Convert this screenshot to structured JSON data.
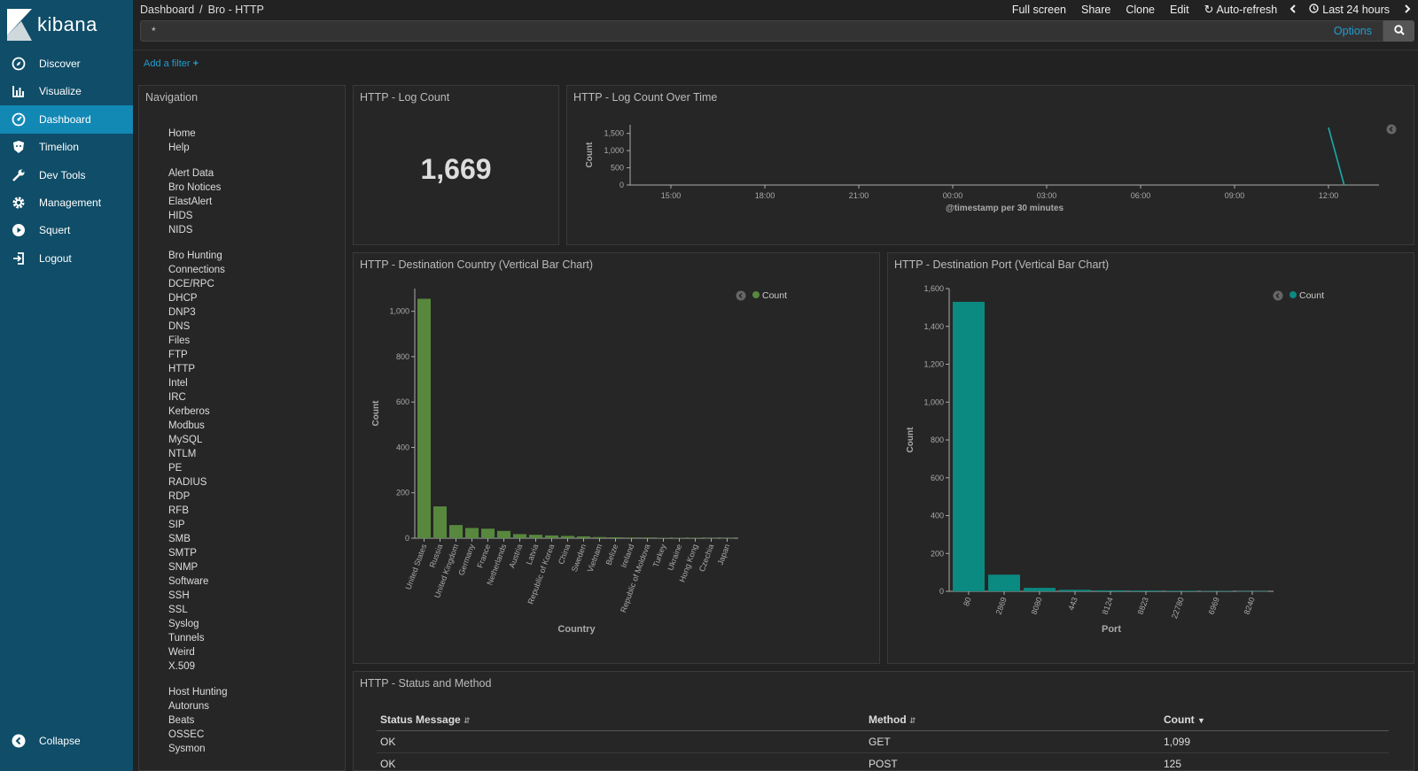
{
  "app": {
    "brand": "kibana"
  },
  "sidebar": {
    "items": [
      {
        "label": "Discover",
        "icon": "compass-icon"
      },
      {
        "label": "Visualize",
        "icon": "bar-chart-icon"
      },
      {
        "label": "Dashboard",
        "icon": "dashboard-icon"
      },
      {
        "label": "Timelion",
        "icon": "timelion-icon"
      },
      {
        "label": "Dev Tools",
        "icon": "wrench-icon"
      },
      {
        "label": "Management",
        "icon": "gear-icon"
      },
      {
        "label": "Squert",
        "icon": "play-circle-icon"
      },
      {
        "label": "Logout",
        "icon": "logout-icon"
      }
    ],
    "active": "Dashboard",
    "collapse_label": "Collapse"
  },
  "breadcrumb": {
    "root": "Dashboard",
    "sep": "/",
    "current": "Bro - HTTP"
  },
  "topmenu": {
    "fullscreen": "Full screen",
    "share": "Share",
    "clone": "Clone",
    "edit": "Edit",
    "autorefresh": "Auto-refresh",
    "timerange": "Last 24 hours"
  },
  "query": {
    "value": "*",
    "options": "Options"
  },
  "filters": {
    "add": "Add a filter"
  },
  "nav_panel": {
    "title": "Navigation",
    "groups": [
      {
        "links": [
          "Home",
          "Help"
        ]
      },
      {
        "links": [
          "Alert Data",
          "Bro Notices",
          "ElastAlert",
          "HIDS",
          "NIDS"
        ]
      },
      {
        "links": [
          "Bro Hunting",
          "Connections",
          "DCE/RPC",
          "DHCP",
          "DNP3",
          "DNS",
          "Files",
          "FTP",
          "HTTP",
          "Intel",
          "IRC",
          "Kerberos",
          "Modbus",
          "MySQL",
          "NTLM",
          "PE",
          "RADIUS",
          "RDP",
          "RFB",
          "SIP",
          "SMB",
          "SMTP",
          "SNMP",
          "Software",
          "SSH",
          "SSL",
          "Syslog",
          "Tunnels",
          "Weird",
          "X.509"
        ]
      },
      {
        "links": [
          "Host Hunting",
          "Autoruns",
          "Beats",
          "OSSEC",
          "Sysmon"
        ]
      }
    ]
  },
  "log_count": {
    "title": "HTTP - Log Count",
    "value": "1,669"
  },
  "chart_data": [
    {
      "type": "line",
      "title": "HTTP - Log Count Over Time",
      "ylabel": "Count",
      "xlabel": "@timestamp per 30 minutes",
      "x_ticks": [
        "15:00",
        "18:00",
        "21:00",
        "00:00",
        "03:00",
        "06:00",
        "09:00",
        "12:00"
      ],
      "y_ticks": [
        "0",
        "500",
        "1,000",
        "1,500"
      ],
      "ylim": [
        0,
        1750
      ],
      "points": [
        {
          "x": "12:00",
          "y": 1669
        },
        {
          "x": "12:30",
          "y": 0
        }
      ],
      "color": "#1ba9a9"
    },
    {
      "type": "bar",
      "title": "HTTP - Destination Country (Vertical Bar Chart)",
      "xlabel": "Country",
      "ylabel": "Count",
      "legend": "Count",
      "legend_position": "top-right",
      "color": "#57883d",
      "ylim": [
        0,
        1100
      ],
      "y_ticks": [
        "0",
        "200",
        "400",
        "600",
        "800",
        "1,000"
      ],
      "categories": [
        "United States",
        "Russia",
        "United Kingdom",
        "Germany",
        "France",
        "Netherlands",
        "Austria",
        "Latvia",
        "Republic of Korea",
        "China",
        "Sweden",
        "Vietnam",
        "Belize",
        "Ireland",
        "Republic of Moldova",
        "Turkey",
        "Ukraine",
        "Hong Kong",
        "Czechia",
        "Japan"
      ],
      "values": [
        1055,
        140,
        58,
        45,
        42,
        32,
        18,
        15,
        12,
        10,
        8,
        5,
        4,
        3,
        3,
        2,
        2,
        2,
        1,
        1
      ]
    },
    {
      "type": "bar",
      "title": "HTTP - Destination Port (Vertical Bar Chart)",
      "xlabel": "Port",
      "ylabel": "Count",
      "legend": "Count",
      "legend_position": "top-right",
      "color": "#0a8a80",
      "ylim": [
        0,
        1600
      ],
      "y_ticks": [
        "0",
        "200",
        "400",
        "600",
        "800",
        "1,000",
        "1,200",
        "1,400",
        "1,600"
      ],
      "categories": [
        "80",
        "2869",
        "8080",
        "443",
        "8124",
        "8823",
        "22780",
        "6969",
        "8240"
      ],
      "values": [
        1530,
        88,
        18,
        8,
        5,
        4,
        3,
        2,
        1
      ]
    },
    {
      "type": "table",
      "title": "HTTP - Status and Method",
      "columns": [
        "Status Message",
        "Method",
        "Count"
      ],
      "rows": [
        [
          "OK",
          "GET",
          "1,099"
        ],
        [
          "OK",
          "POST",
          "125"
        ]
      ]
    }
  ]
}
